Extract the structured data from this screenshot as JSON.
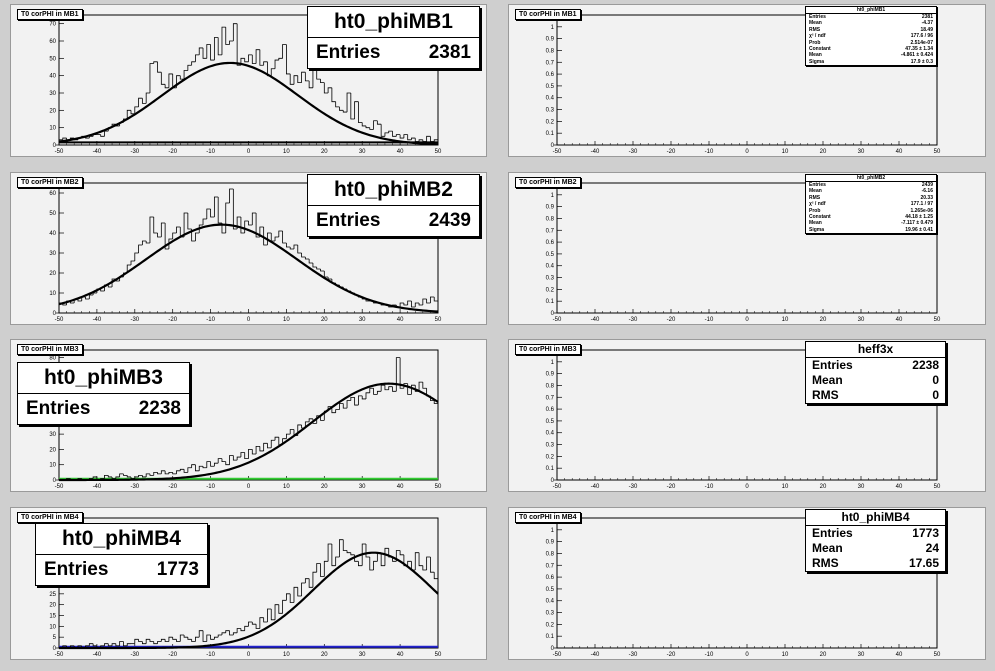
{
  "chart_data": [
    {
      "type": "histogram",
      "pad_title": "T0 corPHI in MB1",
      "stats": {
        "name": "ht0_phiMB1",
        "rows": [
          {
            "label": "Entries",
            "value": "2381"
          }
        ]
      },
      "xlim": [
        -50,
        50
      ],
      "ylim": [
        0,
        75
      ],
      "x_ticks": [
        -50,
        -40,
        -30,
        -20,
        -10,
        0,
        10,
        20,
        30,
        40,
        50
      ],
      "y_ticks": [
        10,
        20,
        30,
        40,
        50,
        60,
        70
      ],
      "bin_width": 1,
      "values": [
        3,
        4,
        3,
        4,
        3,
        4,
        5,
        4,
        5,
        6,
        6,
        5,
        8,
        10,
        12,
        11,
        13,
        15,
        20,
        18,
        22,
        27,
        24,
        30,
        47,
        48,
        42,
        35,
        33,
        41,
        33,
        40,
        38,
        43,
        46,
        48,
        52,
        56,
        50,
        58,
        49,
        62,
        52,
        68,
        58,
        60,
        70,
        46,
        50,
        48,
        52,
        47,
        55,
        46,
        48,
        40,
        44,
        49,
        50,
        58,
        41,
        35,
        40,
        36,
        42,
        37,
        33,
        44,
        38,
        36,
        30,
        33,
        25,
        22,
        20,
        19,
        30,
        15,
        25,
        13,
        11,
        10,
        9,
        14,
        12,
        5,
        7,
        8,
        5,
        6,
        4,
        6,
        3,
        4,
        2,
        3,
        2,
        5,
        2,
        3
      ],
      "fit": {
        "constant": 47.35,
        "mean": -4.861,
        "sigma": 17.9
      },
      "baseline": {
        "color": "#000000",
        "value": 1.5
      }
    },
    {
      "type": "histogram",
      "pad_title": "T0 corPHI in MB2",
      "stats": {
        "name": "ht0_phiMB2",
        "rows": [
          {
            "label": "Entries",
            "value": "2439"
          }
        ]
      },
      "xlim": [
        -50,
        50
      ],
      "ylim": [
        0,
        65
      ],
      "x_ticks": [
        -50,
        -40,
        -30,
        -20,
        -10,
        0,
        10,
        20,
        30,
        40,
        50
      ],
      "y_ticks": [
        10,
        20,
        30,
        40,
        50,
        60
      ],
      "bin_width": 1,
      "values": [
        5,
        4,
        6,
        5,
        7,
        6,
        8,
        7,
        9,
        10,
        12,
        11,
        14,
        13,
        17,
        16,
        18,
        20,
        24,
        26,
        30,
        34,
        36,
        35,
        48,
        40,
        38,
        45,
        32,
        37,
        40,
        43,
        38,
        50,
        42,
        36,
        40,
        44,
        47,
        52,
        48,
        58,
        45,
        40,
        55,
        62,
        42,
        48,
        40,
        46,
        44,
        50,
        38,
        43,
        34,
        40,
        36,
        38,
        41,
        35,
        33,
        32,
        34,
        30,
        28,
        27,
        25,
        23,
        22,
        21,
        18,
        17,
        15,
        14,
        13,
        12,
        11,
        10,
        9,
        8,
        7,
        6,
        6,
        5,
        5,
        4,
        4,
        3,
        4,
        3,
        5,
        4,
        6,
        3,
        5,
        4,
        7,
        5,
        8,
        6
      ],
      "fit": {
        "constant": 44.18,
        "mean": -7.117,
        "sigma": 19.96
      },
      "baseline": null
    },
    {
      "type": "histogram",
      "pad_title": "T0 corPHI in MB3",
      "stats": {
        "name": "ht0_phiMB3",
        "rows": [
          {
            "label": "Entries",
            "value": "2238"
          }
        ]
      },
      "xlim": [
        -50,
        50
      ],
      "ylim": [
        0,
        85
      ],
      "x_ticks": [
        -50,
        -40,
        -30,
        -20,
        -10,
        0,
        10,
        20,
        30,
        40,
        50
      ],
      "y_ticks": [
        10,
        20,
        30,
        40,
        50,
        60,
        70,
        80
      ],
      "bin_width": 1,
      "values": [
        0,
        0,
        1,
        0,
        0,
        1,
        0,
        0,
        1,
        2,
        0,
        1,
        3,
        2,
        1,
        2,
        4,
        3,
        2,
        1,
        2,
        3,
        2,
        4,
        3,
        5,
        4,
        6,
        4,
        5,
        4,
        6,
        7,
        5,
        8,
        10,
        6,
        9,
        8,
        12,
        9,
        11,
        14,
        12,
        10,
        16,
        13,
        15,
        18,
        14,
        20,
        17,
        22,
        19,
        24,
        21,
        26,
        28,
        23,
        27,
        30,
        33,
        29,
        36,
        34,
        38,
        40,
        37,
        42,
        39,
        45,
        48,
        44,
        46,
        50,
        47,
        52,
        54,
        49,
        55,
        53,
        57,
        60,
        56,
        58,
        62,
        59,
        61,
        58,
        80,
        60,
        63,
        56,
        62,
        58,
        64,
        60,
        55,
        52,
        50
      ],
      "fit": {
        "constant": 63,
        "mean": 37,
        "sigma": 20
      },
      "baseline": {
        "color": "#33cc33",
        "value": 0.8
      }
    },
    {
      "type": "histogram",
      "pad_title": "T0 corPHI in MB4",
      "stats": {
        "name": "ht0_phiMB4",
        "rows": [
          {
            "label": "Entries",
            "value": "1773"
          }
        ]
      },
      "xlim": [
        -50,
        50
      ],
      "ylim": [
        0,
        60
      ],
      "x_ticks": [
        -50,
        -40,
        -30,
        -20,
        -10,
        0,
        10,
        20,
        30,
        40,
        50
      ],
      "y_ticks": [
        5,
        10,
        15,
        20,
        25,
        30,
        35,
        40,
        45,
        50,
        55
      ],
      "bin_width": 1,
      "values": [
        0,
        1,
        0,
        1,
        0,
        1,
        0,
        1,
        2,
        1,
        0,
        1,
        2,
        1,
        2,
        1,
        3,
        1,
        2,
        2,
        4,
        3,
        2,
        4,
        3,
        2,
        3,
        4,
        3,
        5,
        4,
        3,
        6,
        5,
        4,
        3,
        5,
        8,
        3,
        6,
        4,
        5,
        6,
        7,
        8,
        6,
        7,
        9,
        8,
        10,
        12,
        11,
        9,
        14,
        12,
        18,
        13,
        20,
        16,
        22,
        25,
        21,
        28,
        24,
        30,
        32,
        28,
        35,
        39,
        33,
        40,
        48,
        38,
        42,
        50,
        45,
        44,
        43,
        40,
        38,
        48,
        42,
        36,
        40,
        44,
        38,
        46,
        42,
        40,
        45,
        43,
        38,
        40,
        36,
        44,
        38,
        36,
        42,
        35,
        32
      ],
      "fit": {
        "constant": 44,
        "mean": 33,
        "sigma": 16
      },
      "baseline": {
        "color": "#2222cc",
        "value": 0.6
      }
    },
    {
      "type": "histogram",
      "pad_title": "T0 corPHI in MB1",
      "stats": {
        "name": "ht0_phiMB1",
        "rows": [
          {
            "label": "Entries",
            "value": "2381"
          },
          {
            "label": "Mean",
            "value": "-4.37"
          },
          {
            "label": "RMS",
            "value": "18.49"
          },
          {
            "label": "χ² / ndf",
            "value": "177.6 / 96"
          },
          {
            "label": "Prob",
            "value": "2.514e-07"
          },
          {
            "label": "Constant",
            "value": "47.35 ± 1.34"
          },
          {
            "label": "Mean",
            "value": "-4.861 ± 0.424"
          },
          {
            "label": "Sigma",
            "value": "17.9 ± 0.3"
          }
        ]
      },
      "xlim": [
        -50,
        50
      ],
      "ylim": [
        0,
        1.1
      ],
      "x_ticks": [
        -50,
        -40,
        -30,
        -20,
        -10,
        0,
        10,
        20,
        30,
        40,
        50
      ],
      "y_ticks": [
        0.1,
        0.2,
        0.3,
        0.4,
        0.5,
        0.6,
        0.7,
        0.8,
        0.9,
        1
      ],
      "values": []
    },
    {
      "type": "histogram",
      "pad_title": "T0 corPHI in MB2",
      "stats": {
        "name": "ht0_phiMB2",
        "rows": [
          {
            "label": "Entries",
            "value": "2439"
          },
          {
            "label": "Mean",
            "value": "-6.16"
          },
          {
            "label": "RMS",
            "value": "20.33"
          },
          {
            "label": "χ² / ndf",
            "value": "177.1 / 97"
          },
          {
            "label": "Prob",
            "value": "1.265e-06"
          },
          {
            "label": "Constant",
            "value": "44.18 ± 1.25"
          },
          {
            "label": "Mean",
            "value": "-7.117 ± 0.479"
          },
          {
            "label": "Sigma",
            "value": "19.96 ± 0.41"
          }
        ]
      },
      "xlim": [
        -50,
        50
      ],
      "ylim": [
        0,
        1.1
      ],
      "x_ticks": [
        -50,
        -40,
        -30,
        -20,
        -10,
        0,
        10,
        20,
        30,
        40,
        50
      ],
      "y_ticks": [
        0.1,
        0.2,
        0.3,
        0.4,
        0.5,
        0.6,
        0.7,
        0.8,
        0.9,
        1
      ],
      "values": []
    },
    {
      "type": "histogram",
      "pad_title": "T0 corPHI in MB3",
      "stats": {
        "name": "heff3x",
        "rows": [
          {
            "label": "Entries",
            "value": "2238"
          },
          {
            "label": "Mean",
            "value": "0"
          },
          {
            "label": "RMS",
            "value": "0"
          }
        ]
      },
      "xlim": [
        -50,
        50
      ],
      "ylim": [
        0,
        1.1
      ],
      "x_ticks": [
        -50,
        -40,
        -30,
        -20,
        -10,
        0,
        10,
        20,
        30,
        40,
        50
      ],
      "y_ticks": [
        0.1,
        0.2,
        0.3,
        0.4,
        0.5,
        0.6,
        0.7,
        0.8,
        0.9,
        1
      ],
      "values": []
    },
    {
      "type": "histogram",
      "pad_title": "T0 corPHI in MB4",
      "stats": {
        "name": "ht0_phiMB4",
        "rows": [
          {
            "label": "Entries",
            "value": "1773"
          },
          {
            "label": "Mean",
            "value": "24"
          },
          {
            "label": "RMS",
            "value": "17.65"
          }
        ]
      },
      "xlim": [
        -50,
        50
      ],
      "ylim": [
        0,
        1.1
      ],
      "x_ticks": [
        -50,
        -40,
        -30,
        -20,
        -10,
        0,
        10,
        20,
        30,
        40,
        50
      ],
      "y_ticks": [
        0.1,
        0.2,
        0.3,
        0.4,
        0.5,
        0.6,
        0.7,
        0.8,
        0.9,
        1
      ],
      "values": []
    }
  ]
}
